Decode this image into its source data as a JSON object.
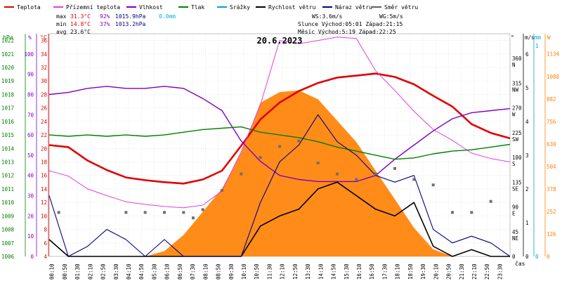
{
  "chart_data": {
    "type": "line",
    "title": "20.6.2023",
    "xlabel": "čas",
    "legend": [
      {
        "name": "Teplota",
        "color": "#e00000"
      },
      {
        "name": "Přízemní teplota",
        "color": "#e040e0"
      },
      {
        "name": "Vlhkost",
        "color": "#8000c0"
      },
      {
        "name": "Tlak",
        "color": "#008000"
      },
      {
        "name": "Srážky",
        "color": "#00a0e0"
      },
      {
        "name": "Rychlost větru",
        "color": "#000000"
      },
      {
        "name": "Náraz větru",
        "color": "#000080"
      },
      {
        "name": "Směr větru",
        "color": "#606060"
      }
    ],
    "stats": {
      "max": {
        "label": "max",
        "temp": "31.3°C",
        "hum": "92%",
        "press": "1015.9hPa",
        "rain": "0.0mm"
      },
      "min": {
        "label": "min",
        "temp": "14.8°C",
        "hum": "37%",
        "press": "1013.2hPa"
      },
      "avg": {
        "label": "avg",
        "temp": "23.6°C"
      }
    },
    "info": {
      "ws": "WS:3.6m/s",
      "wg": "WG:5m/s",
      "sun": "Slunce Východ:05:01  Západ:21:15",
      "moon": "Měsíc  Východ:5:19  Západ:22:25"
    },
    "axes": {
      "hpa": {
        "label": "hPa",
        "ticks": [
          "1006",
          "1007",
          "1008",
          "1009",
          "1010",
          "1011",
          "1012",
          "1013",
          "1014",
          "1015",
          "1016",
          "1017",
          "1018",
          "1019",
          "1020",
          "1021",
          "1022"
        ],
        "range": [
          1006,
          1022.5
        ],
        "color": "#008000"
      },
      "pct": {
        "label": "%",
        "ticks": [
          "0",
          "10",
          "20",
          "30",
          "40",
          "50",
          "60",
          "70",
          "80",
          "90",
          "100"
        ],
        "range": [
          0,
          110
        ],
        "color": "#8000c0"
      },
      "temp": {
        "label": "°C",
        "ticks": [
          "4",
          "6",
          "8",
          "10",
          "12",
          "14",
          "16",
          "18",
          "20",
          "22",
          "24",
          "26",
          "28",
          "30",
          "32",
          "34",
          "36"
        ],
        "range": [
          4,
          37
        ],
        "color": "#e00000"
      },
      "dir": {
        "label": "°",
        "ticks": [
          "0",
          "45 NE",
          "90 E",
          "135 SE",
          "180 S",
          "225 SW",
          "270 W",
          "315 NW",
          "360 N"
        ],
        "range": [
          0,
          405
        ]
      },
      "ms": {
        "label": "m/s",
        "ticks": [
          "0",
          "1",
          "2",
          "3",
          "4",
          "5",
          "6"
        ],
        "range": [
          0,
          6.6
        ]
      },
      "mm": {
        "label": "mm",
        "ticks": [
          "0",
          "1"
        ]
      },
      "wm2": {
        "label": "W",
        "ticks": [
          "0",
          "126",
          "252",
          "378",
          "504",
          "630",
          "756",
          "882",
          "1008",
          "1134"
        ],
        "range": [
          0,
          1247
        ],
        "color": "#ff8000"
      }
    },
    "time_ticks": [
      "00:10",
      "00:50",
      "01:30",
      "02:10",
      "02:50",
      "03:30",
      "04:10",
      "04:50",
      "05:30",
      "06:10",
      "06:50",
      "07:30",
      "08:10",
      "08:50",
      "09:30",
      "10:10",
      "10:50",
      "11:30",
      "12:10",
      "12:50",
      "13:30",
      "14:10",
      "14:50",
      "15:30",
      "16:10",
      "16:50",
      "17:30",
      "18:10",
      "18:50",
      "19:30",
      "20:10",
      "20:50",
      "21:30",
      "22:10",
      "22:50",
      "23:30"
    ],
    "series": [
      {
        "name": "Teplota",
        "unit": "°C",
        "x": [
          0,
          1,
          2,
          3,
          4,
          5,
          6,
          7,
          8,
          9,
          10,
          11,
          12,
          13,
          14,
          15,
          16,
          17,
          18,
          19,
          20,
          21,
          22,
          23,
          24
        ],
        "values": [
          20.5,
          20.2,
          18.2,
          16.8,
          15.7,
          15.3,
          15.0,
          14.8,
          15.4,
          16.7,
          20.4,
          24.3,
          26.8,
          28.5,
          29.7,
          30.5,
          30.8,
          31.1,
          30.6,
          29.5,
          27.8,
          26.2,
          23.6,
          22.3,
          21.5
        ]
      },
      {
        "name": "Přízemní teplota",
        "unit": "°C",
        "x": [
          0,
          1,
          2,
          3,
          4,
          5,
          6,
          7,
          8,
          9,
          10,
          11,
          12,
          13,
          14,
          15,
          16,
          17,
          18,
          19,
          20,
          21,
          22,
          23,
          24
        ],
        "values": [
          16.7,
          15.9,
          14.0,
          13.0,
          12.1,
          11.7,
          11.4,
          11.2,
          11.6,
          13.7,
          19.5,
          26.5,
          36.0,
          35.5,
          36.0,
          36.5,
          36.3,
          31.5,
          28.6,
          25.5,
          22.8,
          21.2,
          19.3,
          18.5,
          18.0
        ]
      },
      {
        "name": "Vlhkost",
        "unit": "%",
        "x": [
          0,
          1,
          2,
          3,
          4,
          5,
          6,
          7,
          8,
          9,
          10,
          11,
          12,
          13,
          14,
          15,
          16,
          17,
          18,
          19,
          20,
          21,
          22,
          23,
          24
        ],
        "values": [
          80,
          81,
          83,
          84,
          83,
          83,
          84,
          83,
          78,
          72,
          57,
          47,
          40,
          38,
          37,
          37,
          37,
          40,
          48,
          55,
          62,
          68,
          71,
          72,
          73
        ]
      },
      {
        "name": "Tlak",
        "unit": "hPa",
        "x": [
          0,
          1,
          2,
          3,
          4,
          5,
          6,
          7,
          8,
          9,
          10,
          11,
          12,
          13,
          14,
          15,
          16,
          17,
          18,
          19,
          20,
          21,
          22,
          23,
          24
        ],
        "values": [
          1015.0,
          1014.9,
          1015.0,
          1014.9,
          1015.0,
          1014.9,
          1015.0,
          1015.2,
          1015.4,
          1015.5,
          1015.6,
          1015.2,
          1015.0,
          1014.8,
          1014.5,
          1014.1,
          1013.8,
          1013.5,
          1013.2,
          1013.3,
          1013.6,
          1013.8,
          1013.9,
          1014.1,
          1014.3
        ]
      },
      {
        "name": "Rychlost větru",
        "unit": "m/s",
        "x": [
          0,
          1,
          2,
          3,
          4,
          5,
          6,
          7,
          8,
          9,
          10,
          11,
          12,
          13,
          14,
          15,
          16,
          17,
          18,
          19,
          20,
          21,
          22,
          23,
          24
        ],
        "values": [
          0.5,
          0,
          0,
          0,
          0,
          0,
          0,
          0,
          0,
          0,
          0,
          0.9,
          1.2,
          1.4,
          2.0,
          2.2,
          1.8,
          1.4,
          1.2,
          1.6,
          0.3,
          0,
          0.2,
          0,
          0
        ]
      },
      {
        "name": "Náraz větru",
        "unit": "m/s",
        "x": [
          0,
          1,
          2,
          3,
          4,
          5,
          6,
          7,
          8,
          9,
          10,
          11,
          12,
          13,
          14,
          15,
          16,
          17,
          18,
          19,
          20,
          21,
          22,
          23,
          24
        ],
        "values": [
          1.8,
          0,
          0.3,
          0.8,
          0.5,
          0,
          0.5,
          0,
          0,
          0,
          0,
          1.6,
          2.8,
          3.3,
          4.2,
          3.4,
          3.0,
          2.4,
          2.2,
          2.4,
          0.8,
          0.4,
          0.6,
          0.4,
          0
        ]
      },
      {
        "name": "Sluneční záření",
        "unit": "W",
        "x": [
          0,
          5,
          6,
          7,
          8,
          9,
          10,
          11,
          12,
          13,
          14,
          15,
          16,
          17,
          18,
          19,
          20,
          21,
          24
        ],
        "values": [
          0,
          0,
          30,
          120,
          250,
          380,
          580,
          860,
          920,
          930,
          880,
          760,
          640,
          480,
          320,
          160,
          40,
          0,
          0
        ]
      },
      {
        "name": "Směr větru",
        "unit": "°",
        "x": [
          0.5,
          4,
          5,
          6,
          7,
          7.5,
          8,
          9,
          10,
          11,
          12,
          13,
          14,
          15,
          16,
          17,
          18,
          19,
          20,
          21,
          22,
          23
        ],
        "values": [
          80,
          80,
          80,
          80,
          80,
          70,
          85,
          120,
          150,
          180,
          200,
          210,
          170,
          150,
          140,
          150,
          160,
          140,
          130,
          80,
          80,
          100
        ]
      }
    ]
  }
}
